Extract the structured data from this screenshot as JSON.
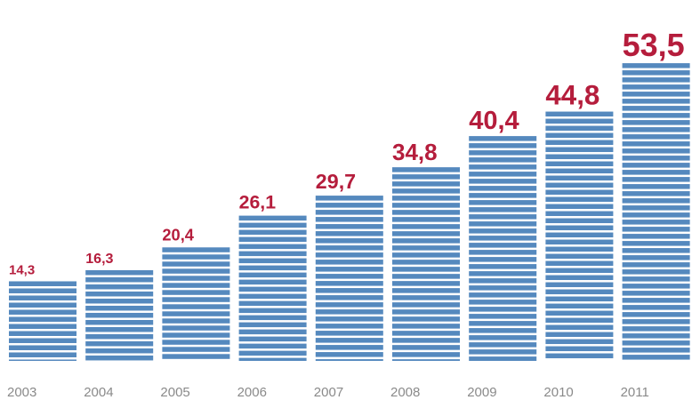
{
  "chart_data": {
    "type": "bar",
    "categories": [
      "2003",
      "2004",
      "2005",
      "2006",
      "2007",
      "2008",
      "2009",
      "2010",
      "2011"
    ],
    "values": [
      14.3,
      16.3,
      20.4,
      26.1,
      29.7,
      34.8,
      40.4,
      44.8,
      53.5
    ],
    "value_labels": [
      "14,3",
      "16,3",
      "20,4",
      "26,1",
      "29,7",
      "34,8",
      "40,4",
      "44,8",
      "53,5"
    ],
    "title": "",
    "xlabel": "",
    "ylabel": "",
    "ylim": [
      0,
      60
    ],
    "grid": false,
    "legend": "none",
    "colors": {
      "bar": "#5589be",
      "value_label": "#b51d3c",
      "category_label": "#8a8a8a"
    }
  }
}
